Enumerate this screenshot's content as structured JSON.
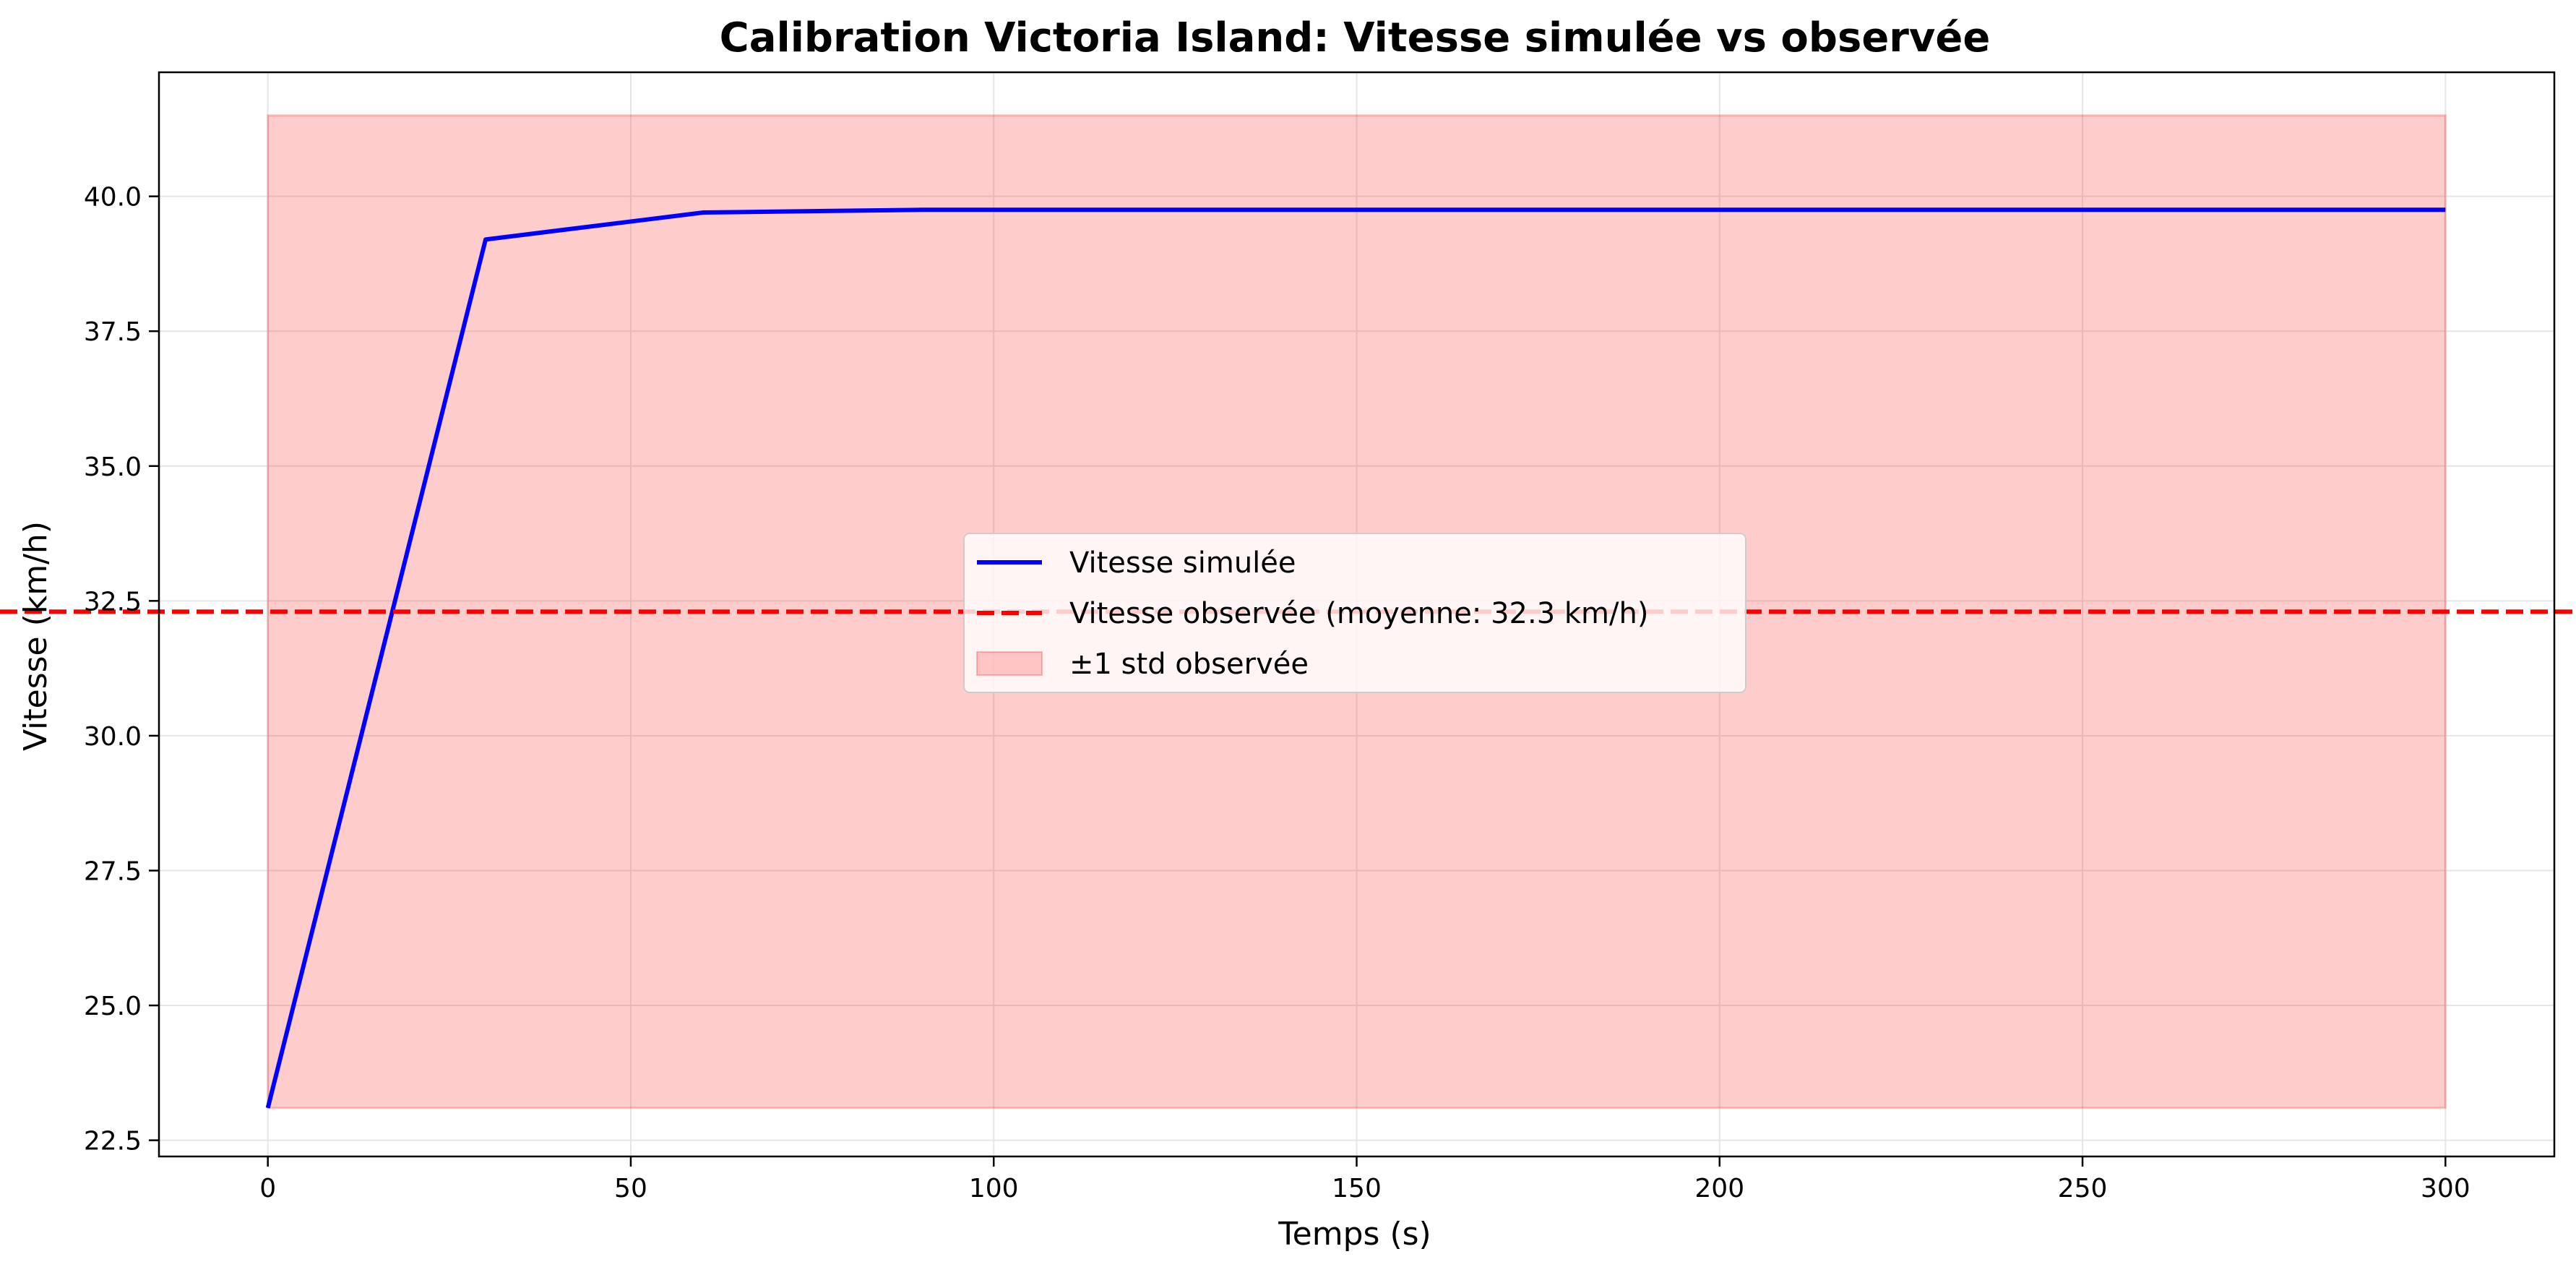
{
  "chart_data": {
    "type": "line",
    "title": "Calibration Victoria Island: Vitesse simulée vs observée",
    "xlabel": "Temps (s)",
    "ylabel": "Vitesse (km/h)",
    "xlim": [
      -15,
      315
    ],
    "ylim": [
      22.2,
      42.3
    ],
    "x_ticks": [
      0,
      50,
      100,
      150,
      200,
      250,
      300
    ],
    "x_tick_labels": [
      "0",
      "50",
      "100",
      "150",
      "200",
      "250",
      "300"
    ],
    "y_ticks": [
      22.5,
      25.0,
      27.5,
      30.0,
      32.5,
      35.0,
      37.5,
      40.0
    ],
    "y_tick_labels": [
      "22.5",
      "25.0",
      "27.5",
      "30.0",
      "32.5",
      "35.0",
      "37.5",
      "40.0"
    ],
    "grid": true,
    "legend_position": "center",
    "series": [
      {
        "name": "Vitesse simulée",
        "style": "solid-line",
        "color": "#0000ff",
        "x": [
          0,
          30,
          60,
          90,
          120,
          150,
          180,
          210,
          240,
          270,
          300
        ],
        "y": [
          23.1,
          39.2,
          39.7,
          39.75,
          39.75,
          39.75,
          39.75,
          39.75,
          39.75,
          39.75,
          39.75
        ]
      },
      {
        "name": "Vitesse observée (moyenne: 32.3 km/h)",
        "style": "dashed-hline",
        "color": "#ff0000",
        "y": 32.3
      },
      {
        "name": "±1 std observée",
        "style": "band",
        "color": "#ff0000",
        "x_range": [
          0,
          300
        ],
        "y_range": [
          23.1,
          41.5
        ]
      }
    ]
  }
}
